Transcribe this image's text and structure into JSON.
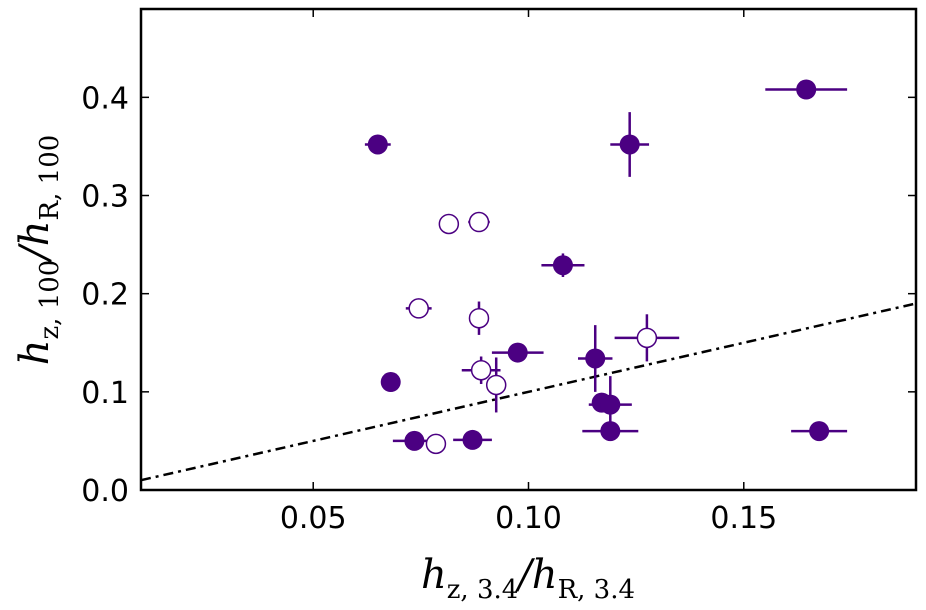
{
  "chart_data": {
    "type": "scatter",
    "title": "",
    "xlabel": {
      "base": "h",
      "sub1": "z, 3.4",
      "slash": "/",
      "base2": "h",
      "sub2": "R, 3.4"
    },
    "ylabel": {
      "base": "h",
      "sub1": "z, 100",
      "slash": "/",
      "base2": "h",
      "sub2": "R, 100"
    },
    "xlim": [
      0.01,
      0.19
    ],
    "ylim": [
      0.0,
      0.49
    ],
    "xticks": [
      0.05,
      0.1,
      0.15
    ],
    "xtick_labels": [
      "0.05",
      "0.10",
      "0.15"
    ],
    "yticks": [
      0.0,
      0.1,
      0.2,
      0.3,
      0.4
    ],
    "ytick_labels": [
      "0.0",
      "0.1",
      "0.2",
      "0.3",
      "0.4"
    ],
    "colors": {
      "marker": "#4b0082",
      "reference_line": "#000000",
      "axes": "#000000"
    },
    "grid": false,
    "reference_line": {
      "style": "dash-dot",
      "slope": 1.0,
      "intercept": 0.0
    },
    "series": [
      {
        "name": "filled",
        "marker": "filled-circle",
        "points": [
          {
            "x": 0.1645,
            "y": 0.408,
            "xerr": 0.0095,
            "yerr": 0.0
          },
          {
            "x": 0.065,
            "y": 0.352,
            "xerr": 0.003,
            "yerr": 0.0
          },
          {
            "x": 0.1235,
            "y": 0.352,
            "xerr": 0.0045,
            "yerr": 0.033
          },
          {
            "x": 0.108,
            "y": 0.229,
            "xerr": 0.005,
            "yerr": 0.012
          },
          {
            "x": 0.0975,
            "y": 0.14,
            "xerr": 0.006,
            "yerr": 0.0
          },
          {
            "x": 0.1155,
            "y": 0.134,
            "xerr": 0.004,
            "yerr": 0.034
          },
          {
            "x": 0.068,
            "y": 0.11,
            "xerr": 0.0,
            "yerr": 0.0
          },
          {
            "x": 0.117,
            "y": 0.089,
            "xerr": 0.002,
            "yerr": 0.0
          },
          {
            "x": 0.119,
            "y": 0.087,
            "xerr": 0.005,
            "yerr": 0.029
          },
          {
            "x": 0.119,
            "y": 0.06,
            "xerr": 0.0065,
            "yerr": 0.0
          },
          {
            "x": 0.1675,
            "y": 0.06,
            "xerr": 0.0065,
            "yerr": 0.0
          },
          {
            "x": 0.0735,
            "y": 0.05,
            "xerr": 0.005,
            "yerr": 0.0
          },
          {
            "x": 0.087,
            "y": 0.051,
            "xerr": 0.0045,
            "yerr": 0.0
          }
        ]
      },
      {
        "name": "open",
        "marker": "open-circle",
        "points": [
          {
            "x": 0.0815,
            "y": 0.271,
            "xerr": 0.0,
            "yerr": 0.006
          },
          {
            "x": 0.0885,
            "y": 0.273,
            "xerr": 0.0025,
            "yerr": 0.0
          },
          {
            "x": 0.0745,
            "y": 0.185,
            "xerr": 0.003,
            "yerr": 0.0
          },
          {
            "x": 0.0885,
            "y": 0.175,
            "xerr": 0.0,
            "yerr": 0.017
          },
          {
            "x": 0.1275,
            "y": 0.155,
            "xerr": 0.0075,
            "yerr": 0.024
          },
          {
            "x": 0.089,
            "y": 0.122,
            "xerr": 0.0045,
            "yerr": 0.014
          },
          {
            "x": 0.0925,
            "y": 0.107,
            "xerr": 0.0,
            "yerr": 0.028
          },
          {
            "x": 0.0785,
            "y": 0.047,
            "xerr": 0.0,
            "yerr": 0.0
          }
        ]
      }
    ]
  }
}
